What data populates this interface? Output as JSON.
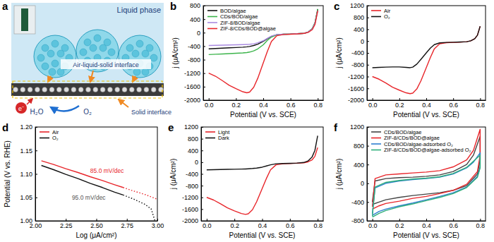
{
  "diagram": {
    "panel": "a",
    "liquid_phase": "Liquid phase",
    "interface_label": "Air-liquid-solid interface",
    "solid_label": "Solid interface",
    "electron": "e⁻",
    "product": "H₂O",
    "reactant": "O₂"
  },
  "chart_data": [
    {
      "type": "line",
      "panel": "b",
      "x_label": "Potential (V vs. SCE)",
      "y_label": "j (μA/cm²)",
      "x": [
        0,
        0.05,
        0.1,
        0.15,
        0.2,
        0.25,
        0.28,
        0.3,
        0.33,
        0.36,
        0.4,
        0.43,
        0.46,
        0.5,
        0.55,
        0.6,
        0.65,
        0.7,
        0.73,
        0.76,
        0.78,
        0.8
      ],
      "xlim": [
        -0.04,
        0.84
      ],
      "xticks": [
        {
          "value": 0,
          "label": "0.0"
        },
        0.2,
        0.4,
        0.6,
        0.8
      ],
      "ylim": [
        -2000,
        800
      ],
      "yticks": [
        -2000,
        -1600,
        -1200,
        -800,
        -400,
        0,
        400,
        800
      ],
      "legend": "upper left",
      "series": [
        {
          "name": "BOD/algae",
          "color": "#111111",
          "line_style": "solid",
          "values": [
            -480,
            -470,
            -460,
            -450,
            -440,
            -430,
            -420,
            -410,
            -380,
            -340,
            -260,
            -180,
            -110,
            -60,
            -45,
            -40,
            -30,
            -20,
            20,
            120,
            300,
            700
          ]
        },
        {
          "name": "CDs/BOD/algae",
          "color": "#3cb44b",
          "line_style": "solid",
          "values": [
            -650,
            -640,
            -630,
            -620,
            -610,
            -600,
            -590,
            -575,
            -540,
            -480,
            -360,
            -230,
            -130,
            -65,
            -45,
            -40,
            -30,
            -20,
            20,
            120,
            300,
            700
          ]
        },
        {
          "name": "ZIF-8/BOD/algae",
          "color": "#a98be0",
          "line_style": "solid",
          "values": [
            -380,
            -375,
            -370,
            -365,
            -360,
            -355,
            -350,
            -345,
            -330,
            -300,
            -240,
            -170,
            -100,
            -55,
            -45,
            -40,
            -30,
            -20,
            20,
            110,
            280,
            650
          ]
        },
        {
          "name": "ZIF-8/CDs/BOD@algae",
          "color": "#e8262b",
          "line_style": "solid",
          "values": [
            -1200,
            -1290,
            -1420,
            -1560,
            -1660,
            -1750,
            -1780,
            -1760,
            -1620,
            -1350,
            -900,
            -560,
            -260,
            -90,
            -55,
            -45,
            -35,
            -20,
            10,
            90,
            250,
            650
          ]
        }
      ]
    },
    {
      "type": "line",
      "panel": "c",
      "x_label": "Potential (V vs. SCE)",
      "y_label": "j (μA/cm²)",
      "x": [
        0,
        0.05,
        0.1,
        0.15,
        0.2,
        0.25,
        0.28,
        0.3,
        0.33,
        0.36,
        0.4,
        0.43,
        0.46,
        0.5,
        0.55,
        0.6,
        0.65,
        0.7,
        0.73,
        0.76,
        0.78,
        0.8
      ],
      "xlim": [
        -0.04,
        0.84
      ],
      "xticks": [
        {
          "value": 0,
          "label": "0.0"
        },
        0.2,
        0.4,
        0.6,
        0.8
      ],
      "ylim": [
        -2000,
        1200
      ],
      "yticks": [
        -2000,
        -1600,
        -1200,
        -800,
        -400,
        0,
        400,
        800,
        1200
      ],
      "legend": "upper left",
      "series": [
        {
          "name": "Air",
          "color": "#e8262b",
          "line_style": "solid",
          "values": [
            -1200,
            -1290,
            -1420,
            -1560,
            -1660,
            -1750,
            -1780,
            -1760,
            -1620,
            -1350,
            -900,
            -560,
            -260,
            -90,
            -55,
            -45,
            -35,
            -20,
            10,
            80,
            200,
            500
          ]
        },
        {
          "name": "O₂",
          "color": "#111111",
          "line_style": "solid",
          "values": [
            -900,
            -890,
            -880,
            -875,
            -875,
            -890,
            -900,
            -880,
            -780,
            -620,
            -400,
            -240,
            -120,
            -60,
            -45,
            -40,
            -30,
            -20,
            10,
            80,
            200,
            500
          ]
        }
      ]
    },
    {
      "type": "line",
      "panel": "d",
      "x_label": "Log (μA/cm²)",
      "y_label": "Potential (V vs. RHE)",
      "x": [
        2.05,
        2.15,
        2.25,
        2.35,
        2.45,
        2.55,
        2.65,
        2.72,
        2.8,
        2.9,
        2.95,
        2.98,
        3.0
      ],
      "xlim": [
        2.0,
        3.0
      ],
      "xticks": [
        {
          "value": 2,
          "label": "2.00"
        },
        2.25,
        {
          "value": 2.5,
          "label": "2.50"
        },
        2.75,
        {
          "value": 3,
          "label": "3.00"
        }
      ],
      "ylim": [
        1.0,
        1.2
      ],
      "yticks": [
        {
          "value": 1,
          "label": "1.00"
        },
        1.05,
        {
          "value": 1.1,
          "label": "1.10"
        },
        1.15,
        {
          "value": 1.2,
          "label": "1.20"
        }
      ],
      "legend": "upper left",
      "series": [
        {
          "name": "Air",
          "color": "#e8262b",
          "line_style": "solid",
          "values": [
            1.128,
            1.12,
            1.111,
            1.103,
            1.094,
            1.086,
            1.077,
            1.071,
            null,
            null,
            null,
            null,
            null
          ]
        },
        {
          "name": "O₂",
          "color": "#111111",
          "line_style": "solid",
          "values": [
            1.118,
            1.109,
            1.099,
            1.09,
            1.08,
            1.071,
            1.061,
            1.055,
            null,
            null,
            null,
            null,
            null
          ]
        },
        {
          "name": "Air",
          "color": "#e8262b",
          "line_style": "dotted",
          "values": [
            null,
            null,
            null,
            null,
            null,
            null,
            null,
            1.071,
            1.064,
            1.056,
            1.051,
            1.048,
            1.046
          ]
        },
        {
          "name": "O₂",
          "color": "#111111",
          "line_style": "dotted",
          "values": [
            null,
            null,
            null,
            null,
            null,
            null,
            null,
            1.055,
            1.047,
            1.035,
            1.025,
            1.0,
            null
          ]
        }
      ],
      "annotations": [
        {
          "text": "85.0 mV/dec",
          "x": 2.45,
          "y": 1.103,
          "color": "#e8262b"
        },
        {
          "text": "95.0 mV/dec",
          "x": 2.3,
          "y": 1.045,
          "color": "#555555"
        }
      ]
    },
    {
      "type": "line",
      "panel": "e",
      "x_label": "Potential (V vs. SCE)",
      "y_label": "j (μA/cm²)",
      "x": [
        0,
        0.05,
        0.1,
        0.15,
        0.2,
        0.25,
        0.28,
        0.3,
        0.33,
        0.36,
        0.4,
        0.43,
        0.46,
        0.5,
        0.55,
        0.6,
        0.65,
        0.7,
        0.73,
        0.76,
        0.78,
        0.8
      ],
      "xlim": [
        -0.04,
        0.84
      ],
      "xticks": [
        {
          "value": 0,
          "label": "0.0"
        },
        0.2,
        0.4,
        0.6,
        0.8
      ],
      "ylim": [
        -2000,
        1200
      ],
      "yticks": [
        -2000,
        -1600,
        -1200,
        -800,
        -400,
        0,
        400,
        800,
        1200
      ],
      "legend": "upper left",
      "series": [
        {
          "name": "Light",
          "color": "#e8262b",
          "line_style": "solid",
          "values": [
            -1200,
            -1290,
            -1420,
            -1560,
            -1660,
            -1750,
            -1780,
            -1760,
            -1620,
            -1350,
            -900,
            -560,
            -260,
            -90,
            -55,
            -45,
            -35,
            -20,
            10,
            80,
            200,
            500
          ]
        },
        {
          "name": "Dark",
          "color": "#111111",
          "line_style": "solid",
          "values": [
            -260,
            -255,
            -250,
            -245,
            -240,
            -235,
            -230,
            -225,
            -215,
            -200,
            -170,
            -130,
            -90,
            -55,
            -45,
            -40,
            -30,
            -10,
            40,
            180,
            400,
            900
          ]
        }
      ]
    },
    {
      "type": "line",
      "panel": "f",
      "x_label": "Potential (V vs. SCE)",
      "y_label": "j (μA/cm²)",
      "x": [
        0,
        0.02,
        0.1,
        0.2,
        0.3,
        0.4,
        0.5,
        0.6,
        0.7,
        0.75,
        0.8,
        0.8,
        0.78,
        0.7,
        0.6,
        0.5,
        0.4,
        0.3,
        0.2,
        0.1,
        0.05,
        0
      ],
      "xlim": [
        -0.04,
        0.84
      ],
      "xticks": [
        {
          "value": 0,
          "label": "0.0"
        },
        0.2,
        0.4,
        0.6,
        0.8
      ],
      "ylim": [
        -800,
        1200
      ],
      "yticks": [
        -800,
        -400,
        0,
        400,
        800,
        1200
      ],
      "legend": "upper left",
      "series": [
        {
          "name": "CDs/BOD/algae",
          "color": "#444444",
          "line_style": "solid",
          "values": [
            -400,
            50,
            100,
            120,
            130,
            150,
            180,
            250,
            400,
            600,
            1000,
            500,
            200,
            -50,
            -150,
            -200,
            -230,
            -260,
            -300,
            -350,
            -400,
            -450
          ]
        },
        {
          "name": "ZIF-8/CDs/BOD@algae",
          "color": "#e8262b",
          "line_style": "solid",
          "values": [
            -500,
            100,
            180,
            200,
            220,
            240,
            270,
            350,
            500,
            700,
            1150,
            600,
            250,
            -20,
            -150,
            -220,
            -280,
            -320,
            -380,
            -430,
            -480,
            -550
          ]
        },
        {
          "name": "CDs/BOD/algae-adsorbed O₂",
          "color": "#2f7fd0",
          "line_style": "solid",
          "values": [
            -650,
            -100,
            0,
            50,
            80,
            100,
            130,
            200,
            330,
            450,
            650,
            350,
            150,
            -80,
            -200,
            -280,
            -350,
            -420,
            -480,
            -550,
            -600,
            -680
          ]
        },
        {
          "name": "ZIF-8/CDs/BOD@algae-adsorbed O₂",
          "color": "#2eae7a",
          "line_style": "solid",
          "values": [
            -700,
            -80,
            20,
            60,
            90,
            110,
            140,
            210,
            340,
            470,
            600,
            330,
            130,
            -90,
            -220,
            -300,
            -370,
            -440,
            -500,
            -580,
            -640,
            -720
          ]
        }
      ]
    }
  ]
}
